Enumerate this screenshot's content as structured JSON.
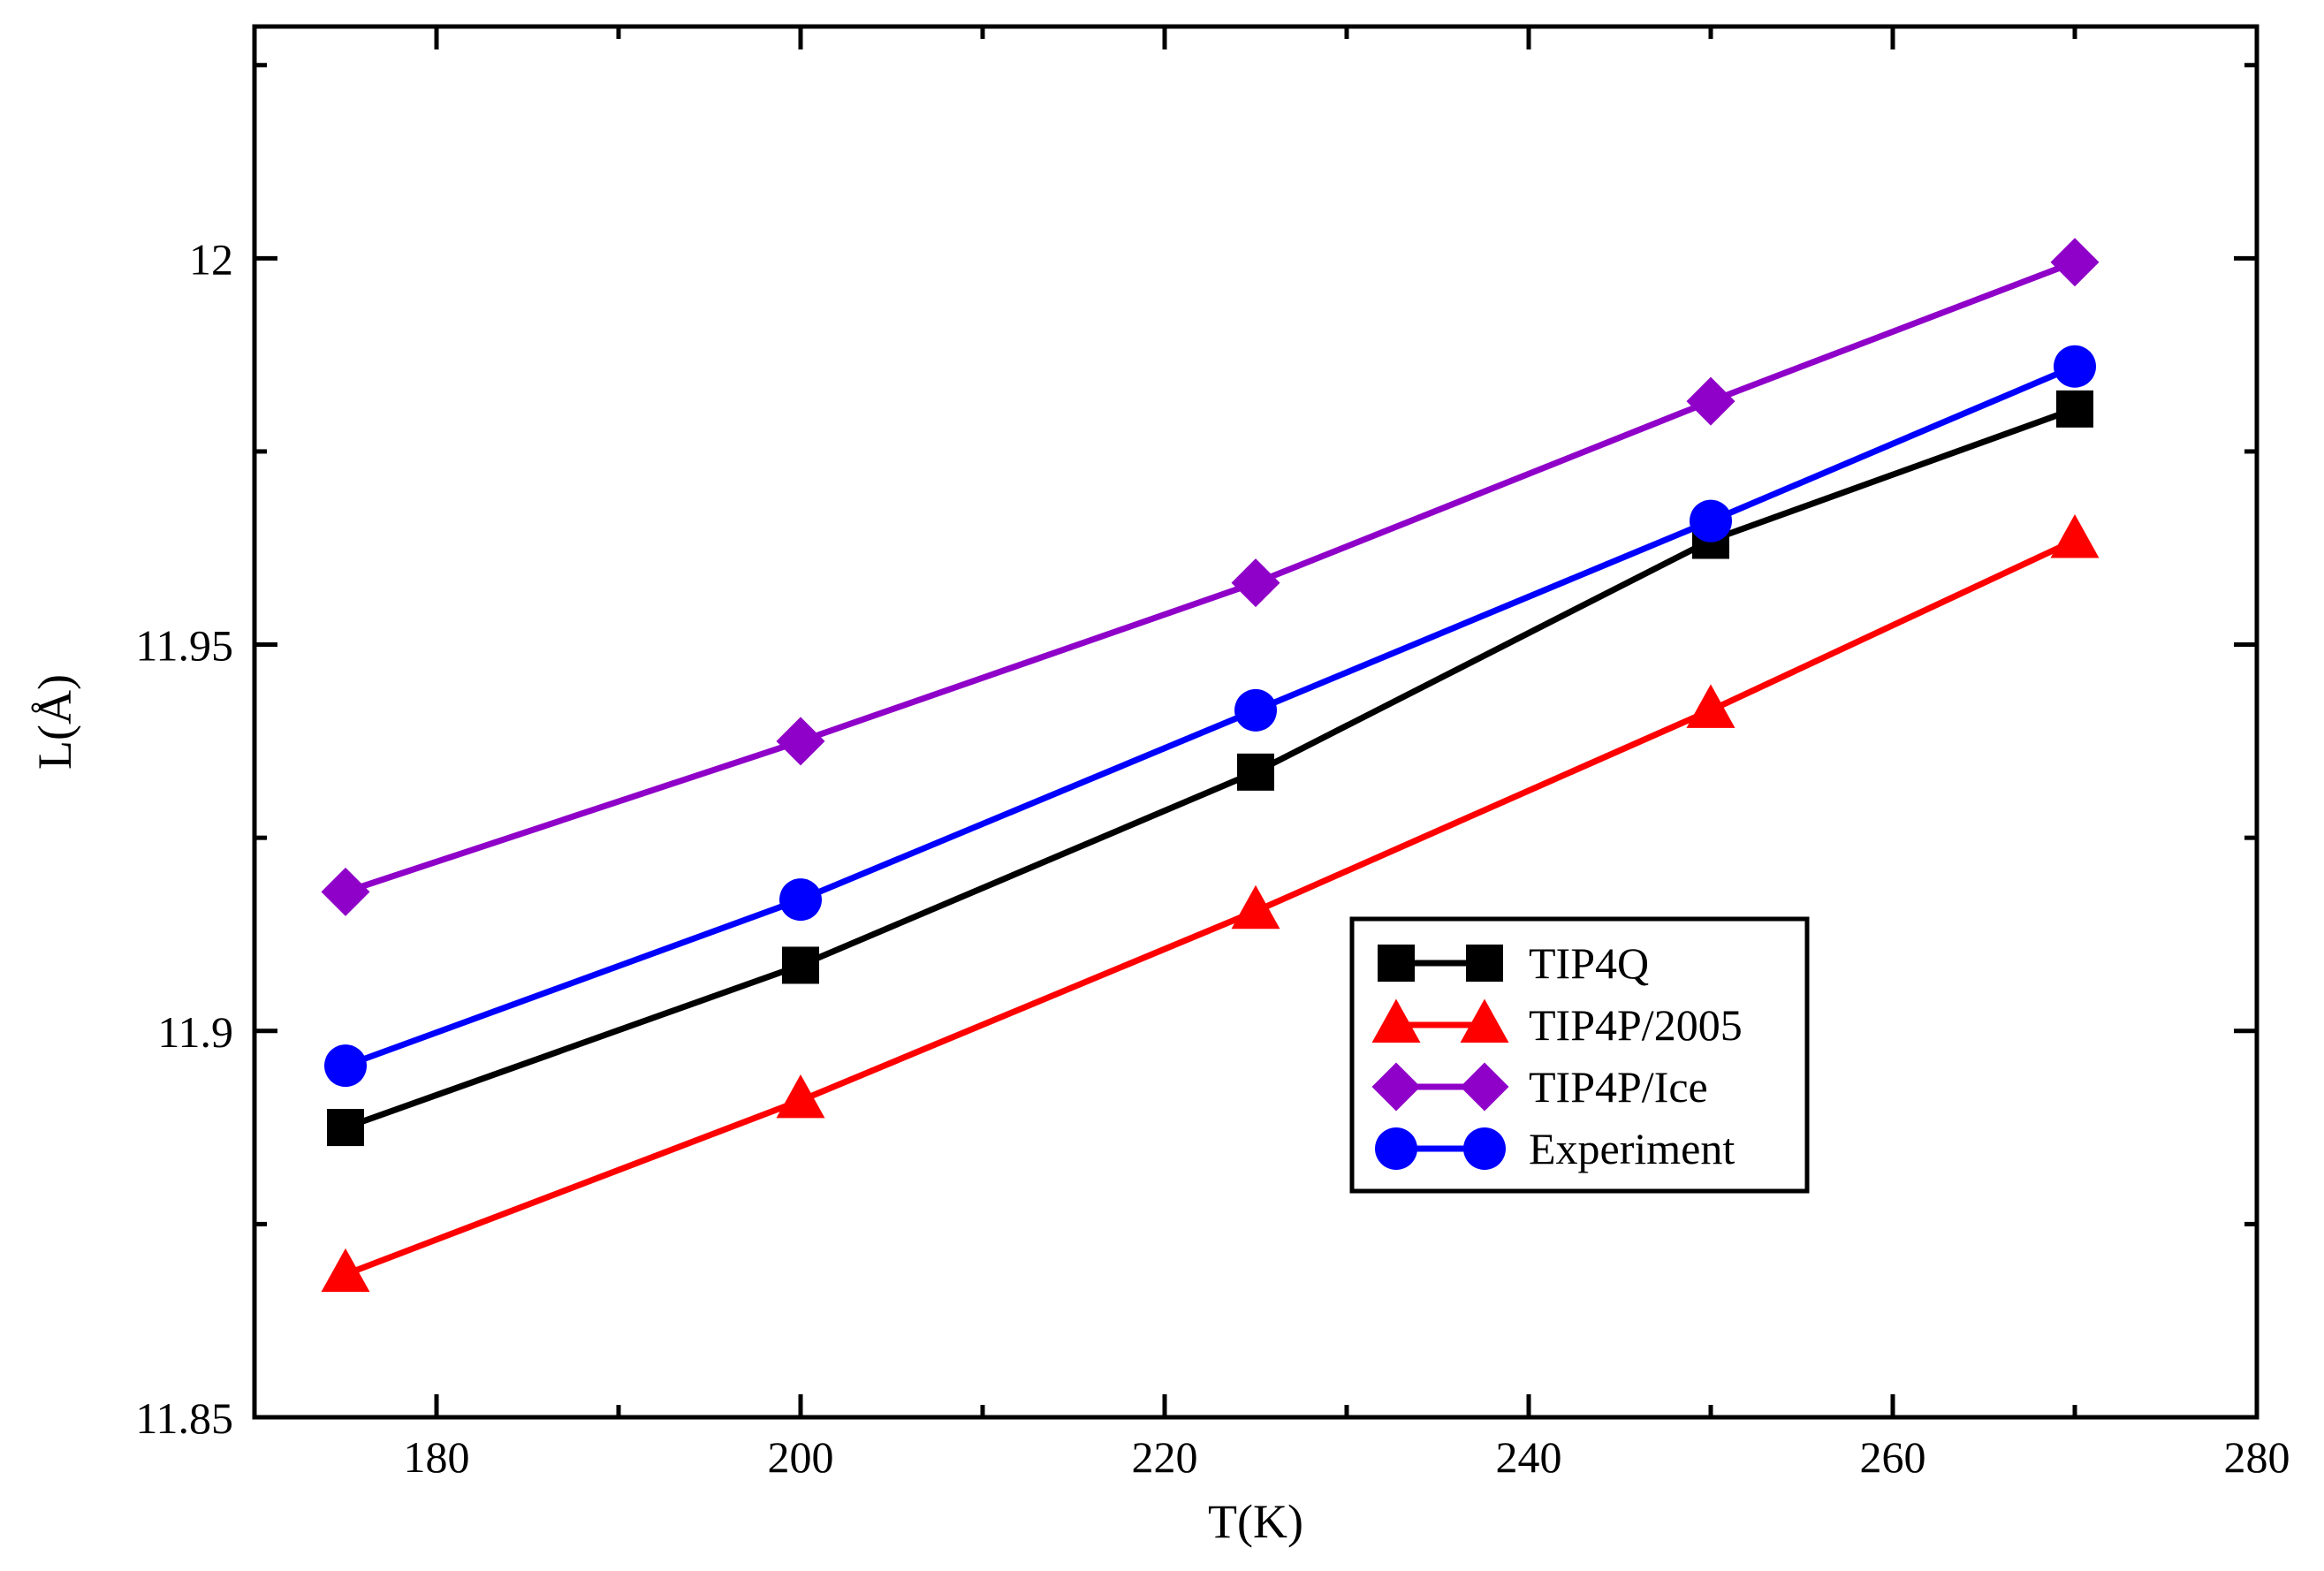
{
  "chart_data": {
    "type": "line",
    "title": "",
    "xlabel": "T(K)",
    "ylabel": "L(Å)",
    "xlim": [
      170,
      280
    ],
    "ylim": [
      11.85,
      12.03
    ],
    "xticks": [
      180,
      200,
      220,
      240,
      260,
      280
    ],
    "xtick_labels": [
      "180",
      "200",
      "220",
      "240",
      "260",
      "280"
    ],
    "yticks": [
      11.85,
      11.9,
      11.95,
      12.0
    ],
    "ytick_labels": [
      "11.85",
      "11.9",
      "11.95",
      "12"
    ],
    "x_minor_step": 10,
    "y_minor_step": 0.025,
    "grid": false,
    "legend_position": "center-right",
    "series": [
      {
        "name": "TIP4Q",
        "color": "#000000",
        "marker": "square",
        "x": [
          175,
          200,
          225,
          250,
          270
        ],
        "y": [
          11.8875,
          11.9085,
          11.9335,
          11.9635,
          11.9805
        ]
      },
      {
        "name": "TIP4P/2005",
        "color": "#ff0000",
        "marker": "triangle",
        "x": [
          175,
          200,
          225,
          250,
          270
        ],
        "y": [
          11.8685,
          11.891,
          11.9155,
          11.9415,
          11.9635
        ]
      },
      {
        "name": "TIP4P/Ice",
        "color": "#8f00c8",
        "marker": "diamond",
        "x": [
          175,
          200,
          225,
          250,
          270
        ],
        "y": [
          11.918,
          11.9375,
          11.958,
          11.9815,
          11.9995
        ]
      },
      {
        "name": "Experiment",
        "color": "#0000ff",
        "marker": "circle",
        "x": [
          175,
          200,
          225,
          250,
          270
        ],
        "y": [
          11.8955,
          11.917,
          11.9415,
          11.966,
          11.986
        ]
      }
    ]
  }
}
